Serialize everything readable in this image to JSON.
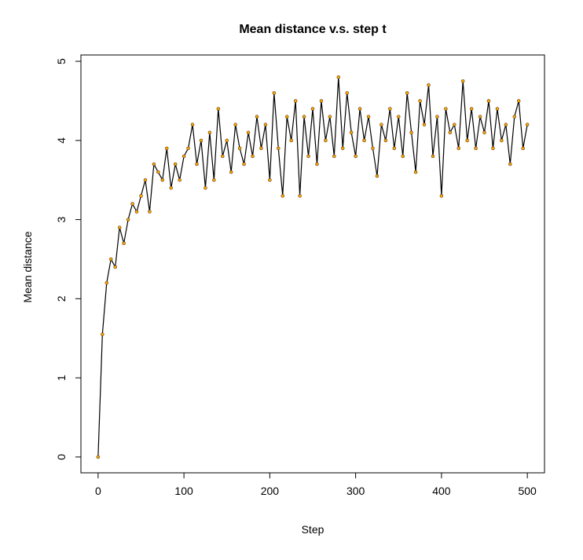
{
  "chart_data": {
    "type": "line",
    "title": "Mean distance v.s. step t",
    "x_label": "Step",
    "y_label": "Mean distance",
    "x": [
      0,
      5,
      10,
      15,
      20,
      25,
      30,
      35,
      40,
      45,
      50,
      55,
      60,
      65,
      70,
      75,
      80,
      85,
      90,
      95,
      100,
      105,
      110,
      115,
      120,
      125,
      130,
      135,
      140,
      145,
      150,
      155,
      160,
      165,
      170,
      175,
      180,
      185,
      190,
      195,
      200,
      205,
      210,
      215,
      220,
      225,
      230,
      235,
      240,
      245,
      250,
      255,
      260,
      265,
      270,
      275,
      280,
      285,
      290,
      295,
      300,
      305,
      310,
      315,
      320,
      325,
      330,
      335,
      340,
      345,
      350,
      355,
      360,
      365,
      370,
      375,
      380,
      385,
      390,
      395,
      400,
      405,
      410,
      415,
      420,
      425,
      430,
      435,
      440,
      445,
      450,
      455,
      460,
      465,
      470,
      475,
      480,
      485,
      490,
      495,
      500
    ],
    "series": [
      {
        "name": "Mean distance",
        "color": "#000000",
        "point_color": "#ffa500",
        "values": [
          0,
          1.55,
          2.2,
          2.5,
          2.4,
          2.9,
          2.7,
          3.0,
          3.2,
          3.1,
          3.3,
          3.5,
          3.1,
          3.7,
          3.6,
          3.5,
          3.9,
          3.4,
          3.7,
          3.5,
          3.8,
          3.9,
          4.2,
          3.7,
          4.0,
          3.4,
          4.1,
          3.5,
          4.4,
          3.8,
          4.0,
          3.6,
          4.2,
          3.9,
          3.7,
          4.1,
          3.8,
          4.3,
          3.9,
          4.2,
          3.5,
          4.6,
          3.9,
          3.3,
          4.3,
          4.0,
          4.5,
          3.3,
          4.3,
          3.8,
          4.4,
          3.7,
          4.5,
          4.0,
          4.3,
          3.8,
          4.8,
          3.9,
          4.6,
          4.1,
          3.8,
          4.4,
          4.0,
          4.3,
          3.9,
          3.55,
          4.2,
          4.0,
          4.4,
          3.9,
          4.3,
          3.8,
          4.6,
          4.1,
          3.6,
          4.5,
          4.2,
          4.7,
          3.8,
          4.3,
          3.3,
          4.4,
          4.1,
          4.2,
          3.9,
          4.75,
          4.0,
          4.4,
          3.9,
          4.3,
          4.1,
          4.5,
          3.9,
          4.4,
          4.0,
          4.2,
          3.7,
          4.3,
          4.5,
          3.9,
          4.2
        ]
      }
    ],
    "xlim": [
      -20,
      520
    ],
    "ylim": [
      -0.2,
      5.08
    ],
    "xticks": [
      0,
      100,
      200,
      300,
      400,
      500
    ],
    "yticks": [
      0,
      1,
      2,
      3,
      4,
      5
    ],
    "grid": false
  }
}
